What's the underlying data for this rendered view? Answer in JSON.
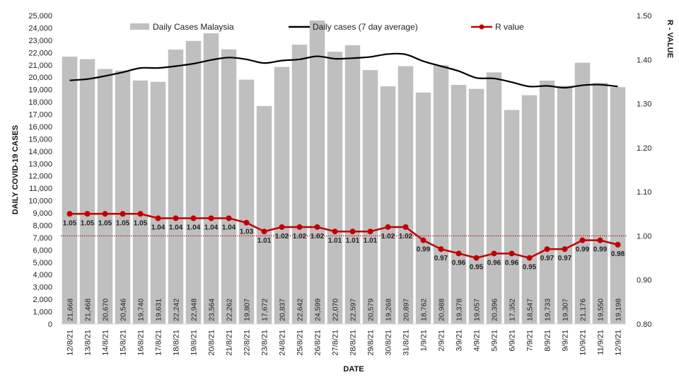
{
  "chart_data": {
    "type": "bar",
    "title": "",
    "xlabel": "DATE",
    "ylabel": "DAILY COVID-19 CASES",
    "y2label": "R - VALUE",
    "ylim": [
      0,
      25000
    ],
    "y2lim": [
      0.8,
      1.5
    ],
    "yticks": [
      0,
      1000,
      2000,
      3000,
      4000,
      5000,
      6000,
      7000,
      8000,
      9000,
      10000,
      11000,
      12000,
      13000,
      14000,
      15000,
      16000,
      17000,
      18000,
      19000,
      20000,
      21000,
      22000,
      23000,
      24000,
      25000
    ],
    "ytick_labels": [
      "0",
      "1,000",
      "2,000",
      "3,000",
      "4,000",
      "5,000",
      "6,000",
      "7,000",
      "8,000",
      "9,000",
      "10,000",
      "11,000",
      "12,000",
      "13,000",
      "14,000",
      "15,000",
      "16,000",
      "17,000",
      "18,000",
      "19,000",
      "20,000",
      "21,000",
      "22,000",
      "23,000",
      "24,000",
      "25,000"
    ],
    "y2ticks": [
      0.8,
      0.9,
      1.0,
      1.1,
      1.2,
      1.3,
      1.4,
      1.5
    ],
    "y2tick_labels": [
      "0.80",
      "0.90",
      "1.00",
      "1.10",
      "1.20",
      "1.30",
      "1.40",
      "1.50"
    ],
    "r_reference": 1.0,
    "categories": [
      "12/8/21",
      "13/8/21",
      "14/8/21",
      "15/8/21",
      "16/8/21",
      "17/8/21",
      "18/8/21",
      "19/8/21",
      "20/8/21",
      "21/8/21",
      "22/8/21",
      "23/8/21",
      "24/8/21",
      "25/8/21",
      "26/8/21",
      "27/8/21",
      "28/8/21",
      "29/8/21",
      "30/8/21",
      "31/8/21",
      "1/9/21",
      "2/9/21",
      "3/9/21",
      "4/9/21",
      "5/9/21",
      "6/9/21",
      "7/9/21",
      "8/9/21",
      "9/9/21",
      "10/9/21",
      "11/9/21",
      "12/9/21"
    ],
    "series": [
      {
        "name": "Daily Cases Malaysia",
        "kind": "bar",
        "axis": "left",
        "color": "#bfbfbf",
        "values": [
          21668,
          21468,
          20670,
          20546,
          19740,
          19631,
          22242,
          22948,
          23564,
          22262,
          19807,
          17672,
          20837,
          22642,
          24599,
          22070,
          22597,
          20579,
          19268,
          20897,
          18762,
          20988,
          19378,
          19057,
          20396,
          17352,
          18547,
          19733,
          19307,
          21176,
          19550,
          19198
        ],
        "labels": [
          "21,668",
          "21,468",
          "20,670",
          "20,546",
          "19,740",
          "19,631",
          "22,242",
          "22,948",
          "23,564",
          "22,262",
          "19,807",
          "17,672",
          "20,837",
          "22,642",
          "24,599",
          "22,070",
          "22,597",
          "20,579",
          "19,268",
          "20,897",
          "18,762",
          "20,988",
          "19,378",
          "19,057",
          "20,396",
          "17,352",
          "18,547",
          "19,733",
          "19,307",
          "21,176",
          "19,550",
          "19,198"
        ]
      },
      {
        "name": "Daily cases (7 day average)",
        "kind": "line",
        "axis": "left",
        "color": "#000000",
        "values": [
          19750,
          19850,
          20100,
          20400,
          20750,
          20750,
          20900,
          21100,
          21400,
          21600,
          21450,
          21150,
          21350,
          21450,
          21700,
          21500,
          21550,
          21650,
          21880,
          21850,
          21300,
          20900,
          20500,
          19950,
          19900,
          19600,
          19250,
          19300,
          19150,
          19350,
          19400,
          19250
        ]
      },
      {
        "name": "R value",
        "kind": "line",
        "axis": "right",
        "color": "#c00000",
        "values": [
          1.05,
          1.05,
          1.05,
          1.05,
          1.05,
          1.04,
          1.04,
          1.04,
          1.04,
          1.04,
          1.03,
          1.01,
          1.02,
          1.02,
          1.02,
          1.01,
          1.01,
          1.01,
          1.02,
          1.02,
          0.99,
          0.97,
          0.96,
          0.95,
          0.96,
          0.96,
          0.95,
          0.97,
          0.97,
          0.99,
          0.99,
          0.98
        ],
        "labels": [
          "1.05",
          "1.05",
          "1.05",
          "1.05",
          "1.05",
          "1.04",
          "1.04",
          "1.04",
          "1.04",
          "1.04",
          "1.03",
          "1.01",
          "1.02",
          "1.02",
          "1.02",
          "1.01",
          "1.01",
          "1.01",
          "1.02",
          "1.02",
          "0.99",
          "0.97",
          "0.96",
          "0.95",
          "0.96",
          "0.96",
          "0.95",
          "0.97",
          "0.97",
          "0.99",
          "0.99",
          "0.98"
        ]
      }
    ],
    "legend": [
      "Daily Cases Malaysia",
      "Daily cases (7 day average)",
      "R value"
    ],
    "legend_position": "top"
  }
}
